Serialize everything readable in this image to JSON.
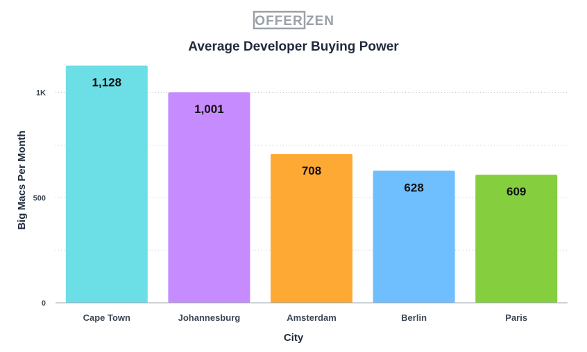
{
  "logo": {
    "left": "OFFER",
    "right": "ZEN",
    "color": "#9aa0a6"
  },
  "chart_data": {
    "type": "bar",
    "title": "Average Developer Buying Power",
    "xlabel": "City",
    "ylabel": "Big Macs Per Month",
    "categories": [
      "Cape Town",
      "Johannesburg",
      "Amsterdam",
      "Berlin",
      "Paris"
    ],
    "values": [
      1128,
      1001,
      708,
      628,
      609
    ],
    "value_labels": [
      "1,128",
      "1,001",
      "708",
      "628",
      "609"
    ],
    "colors": [
      "#6cdee6",
      "#c58bff",
      "#ffa935",
      "#6fbfff",
      "#85cf3f"
    ],
    "ylim": [
      0,
      1150
    ],
    "yticks": [
      0,
      500,
      1000
    ],
    "ytick_labels": [
      "0",
      "500",
      "1K"
    ],
    "grid": true,
    "legend": "none"
  }
}
